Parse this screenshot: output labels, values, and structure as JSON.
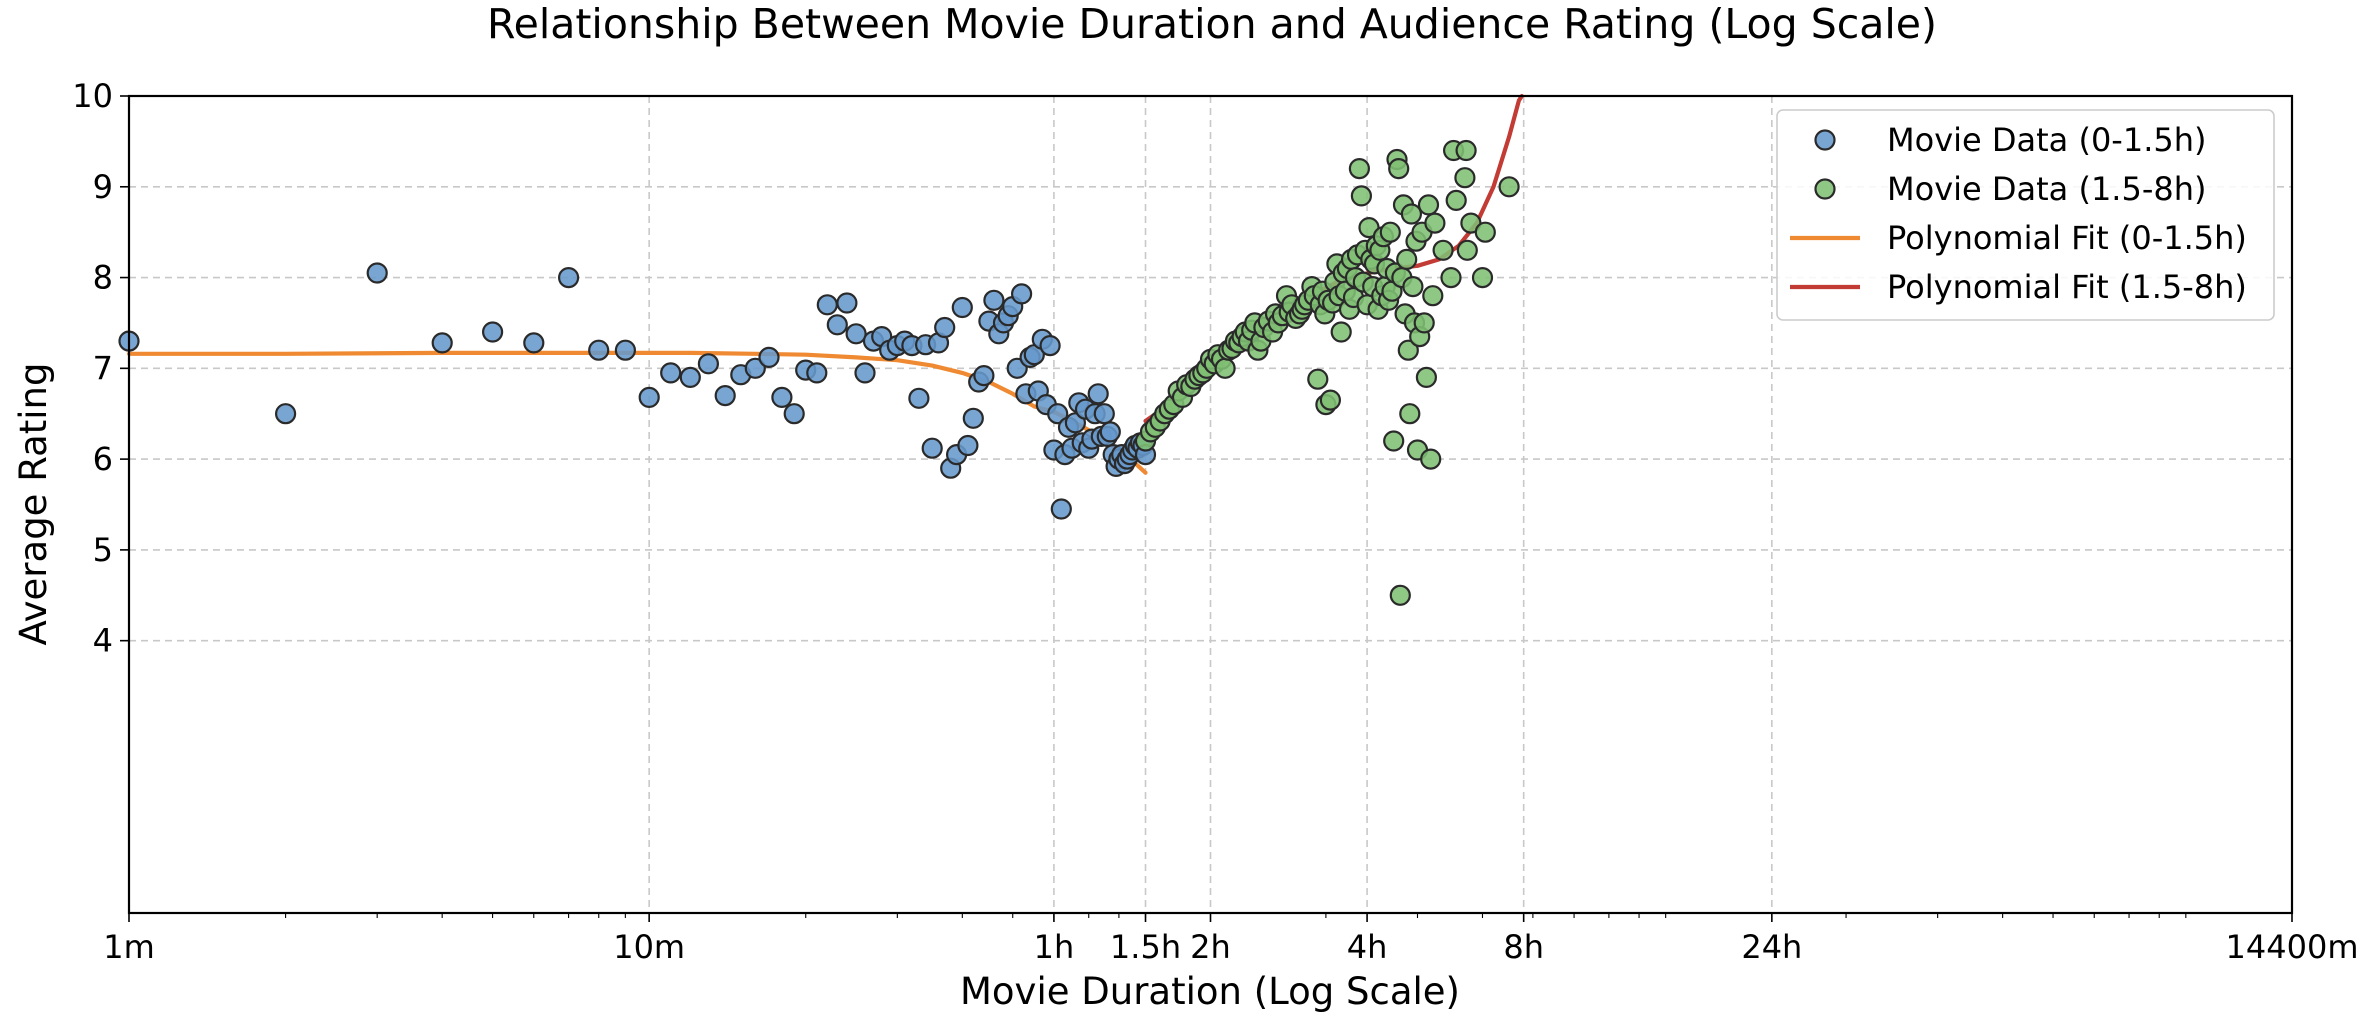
{
  "chart_data": {
    "type": "scatter",
    "title": "Relationship Between Movie Duration and Audience Rating (Log Scale)",
    "xlabel": "Movie Duration (Log Scale)",
    "ylabel": "Average Rating",
    "x_unit": "minutes",
    "x_scale": "log",
    "xlim": [
      1,
      14400
    ],
    "ylim": [
      1,
      10
    ],
    "grid": true,
    "legend_position": "top-right",
    "x_ticks": [
      {
        "value": 1,
        "label": "1m"
      },
      {
        "value": 10,
        "label": "10m"
      },
      {
        "value": 60,
        "label": "1h"
      },
      {
        "value": 90,
        "label": "1.5h"
      },
      {
        "value": 120,
        "label": "2h"
      },
      {
        "value": 240,
        "label": "4h"
      },
      {
        "value": 480,
        "label": "8h"
      },
      {
        "value": 1440,
        "label": "24h"
      },
      {
        "value": 14400,
        "label": "14400m"
      }
    ],
    "y_ticks": [
      {
        "value": 4,
        "label": "4"
      },
      {
        "value": 5,
        "label": "5"
      },
      {
        "value": 6,
        "label": "6"
      },
      {
        "value": 7,
        "label": "7"
      },
      {
        "value": 8,
        "label": "8"
      },
      {
        "value": 9,
        "label": "9"
      },
      {
        "value": 10,
        "label": "10"
      }
    ],
    "series": [
      {
        "name": "Movie Data (0-1.5h)",
        "kind": "scatter",
        "color": "#6699cc",
        "points": [
          [
            1,
            7.3
          ],
          [
            2,
            6.5
          ],
          [
            3,
            8.05
          ],
          [
            4,
            7.28
          ],
          [
            5,
            7.4
          ],
          [
            6,
            7.28
          ],
          [
            7,
            8.0
          ],
          [
            8,
            7.2
          ],
          [
            9,
            7.2
          ],
          [
            10,
            6.68
          ],
          [
            11,
            6.95
          ],
          [
            12,
            6.9
          ],
          [
            13,
            7.05
          ],
          [
            14,
            6.7
          ],
          [
            15,
            6.93
          ],
          [
            16,
            7.0
          ],
          [
            17,
            7.12
          ],
          [
            18,
            6.68
          ],
          [
            19,
            6.5
          ],
          [
            20,
            6.98
          ],
          [
            21,
            6.95
          ],
          [
            22,
            7.7
          ],
          [
            23,
            7.48
          ],
          [
            24,
            7.72
          ],
          [
            25,
            7.38
          ],
          [
            26,
            6.95
          ],
          [
            27,
            7.3
          ],
          [
            28,
            7.35
          ],
          [
            29,
            7.2
          ],
          [
            30,
            7.25
          ],
          [
            31,
            7.3
          ],
          [
            32,
            7.25
          ],
          [
            33,
            6.67
          ],
          [
            34,
            7.26
          ],
          [
            35,
            6.12
          ],
          [
            36,
            7.28
          ],
          [
            37,
            7.45
          ],
          [
            38,
            5.9
          ],
          [
            39,
            6.05
          ],
          [
            40,
            7.67
          ],
          [
            41,
            6.15
          ],
          [
            42,
            6.45
          ],
          [
            43,
            6.85
          ],
          [
            44,
            6.92
          ],
          [
            45,
            7.52
          ],
          [
            46,
            7.75
          ],
          [
            47,
            7.38
          ],
          [
            48,
            7.5
          ],
          [
            49,
            7.58
          ],
          [
            50,
            7.68
          ],
          [
            51,
            7.0
          ],
          [
            52,
            7.82
          ],
          [
            53,
            6.72
          ],
          [
            54,
            7.12
          ],
          [
            55,
            7.15
          ],
          [
            56,
            6.75
          ],
          [
            57,
            7.32
          ],
          [
            58,
            6.6
          ],
          [
            59,
            7.25
          ],
          [
            60,
            6.1
          ],
          [
            61,
            6.5
          ],
          [
            62,
            5.45
          ],
          [
            63,
            6.05
          ],
          [
            64,
            6.35
          ],
          [
            65,
            6.12
          ],
          [
            66,
            6.4
          ],
          [
            67,
            6.62
          ],
          [
            68,
            6.18
          ],
          [
            69,
            6.55
          ],
          [
            70,
            6.12
          ],
          [
            71,
            6.22
          ],
          [
            72,
            6.5
          ],
          [
            73,
            6.72
          ],
          [
            74,
            6.25
          ],
          [
            75,
            6.5
          ],
          [
            76,
            6.25
          ],
          [
            77,
            6.3
          ],
          [
            78,
            6.05
          ],
          [
            79,
            5.92
          ],
          [
            80,
            6.0
          ],
          [
            81,
            6.05
          ],
          [
            82,
            5.95
          ],
          [
            83,
            6.0
          ],
          [
            84,
            6.05
          ],
          [
            85,
            6.1
          ],
          [
            86,
            6.15
          ],
          [
            87,
            6.12
          ],
          [
            88,
            6.18
          ],
          [
            89,
            6.15
          ],
          [
            90,
            6.05
          ]
        ]
      },
      {
        "name": "Movie Data (1.5-8h)",
        "kind": "scatter",
        "color": "#80bf73",
        "points": [
          [
            90,
            6.2
          ],
          [
            92,
            6.3
          ],
          [
            94,
            6.35
          ],
          [
            96,
            6.42
          ],
          [
            98,
            6.5
          ],
          [
            100,
            6.55
          ],
          [
            102,
            6.6
          ],
          [
            104,
            6.75
          ],
          [
            106,
            6.68
          ],
          [
            108,
            6.82
          ],
          [
            110,
            6.8
          ],
          [
            112,
            6.88
          ],
          [
            114,
            6.92
          ],
          [
            116,
            6.95
          ],
          [
            118,
            7.0
          ],
          [
            120,
            7.1
          ],
          [
            122,
            7.05
          ],
          [
            124,
            7.15
          ],
          [
            126,
            7.1
          ],
          [
            128,
            7.0
          ],
          [
            130,
            7.2
          ],
          [
            132,
            7.22
          ],
          [
            134,
            7.3
          ],
          [
            136,
            7.28
          ],
          [
            138,
            7.35
          ],
          [
            140,
            7.4
          ],
          [
            142,
            7.3
          ],
          [
            144,
            7.42
          ],
          [
            146,
            7.5
          ],
          [
            148,
            7.2
          ],
          [
            150,
            7.3
          ],
          [
            152,
            7.45
          ],
          [
            155,
            7.52
          ],
          [
            158,
            7.4
          ],
          [
            160,
            7.6
          ],
          [
            162,
            7.5
          ],
          [
            165,
            7.58
          ],
          [
            168,
            7.8
          ],
          [
            170,
            7.62
          ],
          [
            172,
            7.7
          ],
          [
            175,
            7.55
          ],
          [
            178,
            7.6
          ],
          [
            180,
            7.65
          ],
          [
            182,
            7.7
          ],
          [
            185,
            7.75
          ],
          [
            188,
            7.9
          ],
          [
            190,
            7.8
          ],
          [
            193,
            6.88
          ],
          [
            195,
            7.7
          ],
          [
            197,
            7.85
          ],
          [
            199,
            7.6
          ],
          [
            200,
            6.6
          ],
          [
            202,
            7.75
          ],
          [
            204,
            6.65
          ],
          [
            206,
            7.72
          ],
          [
            208,
            7.95
          ],
          [
            210,
            8.15
          ],
          [
            212,
            7.8
          ],
          [
            214,
            7.4
          ],
          [
            216,
            8.05
          ],
          [
            218,
            7.85
          ],
          [
            220,
            8.1
          ],
          [
            222,
            7.65
          ],
          [
            224,
            8.2
          ],
          [
            226,
            7.78
          ],
          [
            228,
            8.0
          ],
          [
            230,
            8.25
          ],
          [
            232,
            9.2
          ],
          [
            234,
            8.9
          ],
          [
            236,
            7.95
          ],
          [
            238,
            8.3
          ],
          [
            240,
            7.7
          ],
          [
            242,
            8.55
          ],
          [
            244,
            8.2
          ],
          [
            246,
            7.9
          ],
          [
            248,
            8.15
          ],
          [
            250,
            8.35
          ],
          [
            252,
            7.65
          ],
          [
            254,
            8.3
          ],
          [
            256,
            7.8
          ],
          [
            258,
            8.45
          ],
          [
            260,
            7.9
          ],
          [
            262,
            8.1
          ],
          [
            264,
            7.75
          ],
          [
            266,
            8.5
          ],
          [
            268,
            7.85
          ],
          [
            270,
            6.2
          ],
          [
            272,
            8.05
          ],
          [
            274,
            9.3
          ],
          [
            276,
            9.2
          ],
          [
            278,
            4.5
          ],
          [
            280,
            8.0
          ],
          [
            282,
            8.8
          ],
          [
            284,
            7.6
          ],
          [
            286,
            8.2
          ],
          [
            288,
            7.2
          ],
          [
            290,
            6.5
          ],
          [
            292,
            8.7
          ],
          [
            294,
            7.9
          ],
          [
            296,
            7.5
          ],
          [
            298,
            8.4
          ],
          [
            300,
            6.1
          ],
          [
            303,
            7.35
          ],
          [
            306,
            8.5
          ],
          [
            309,
            7.5
          ],
          [
            312,
            6.9
          ],
          [
            315,
            8.8
          ],
          [
            318,
            6.0
          ],
          [
            321,
            7.8
          ],
          [
            324,
            8.6
          ],
          [
            336,
            8.3
          ],
          [
            348,
            8.0
          ],
          [
            352,
            9.4
          ],
          [
            356,
            8.85
          ],
          [
            370,
            9.1
          ],
          [
            372,
            9.4
          ],
          [
            374,
            8.3
          ],
          [
            380,
            8.6
          ],
          [
            400,
            8.0
          ],
          [
            405,
            8.5
          ],
          [
            450,
            9.0
          ]
        ]
      },
      {
        "name": "Polynomial Fit (0-1.5h)",
        "kind": "line",
        "color": "#ef8a32",
        "points": [
          [
            1,
            7.16
          ],
          [
            2,
            7.16
          ],
          [
            4,
            7.17
          ],
          [
            8,
            7.17
          ],
          [
            12,
            7.17
          ],
          [
            16,
            7.16
          ],
          [
            20,
            7.15
          ],
          [
            25,
            7.12
          ],
          [
            30,
            7.09
          ],
          [
            35,
            7.03
          ],
          [
            40,
            6.95
          ],
          [
            45,
            6.85
          ],
          [
            50,
            6.72
          ],
          [
            55,
            6.58
          ],
          [
            60,
            6.52
          ],
          [
            65,
            6.42
          ],
          [
            70,
            6.32
          ],
          [
            75,
            6.2
          ],
          [
            80,
            6.1
          ],
          [
            85,
            5.98
          ],
          [
            90,
            5.85
          ]
        ]
      },
      {
        "name": "Polynomial Fit (1.5-8h)",
        "kind": "line",
        "color": "#c23b34",
        "points": [
          [
            90,
            6.42
          ],
          [
            100,
            6.6
          ],
          [
            110,
            6.78
          ],
          [
            120,
            6.95
          ],
          [
            135,
            7.2
          ],
          [
            150,
            7.42
          ],
          [
            170,
            7.65
          ],
          [
            190,
            7.82
          ],
          [
            210,
            7.95
          ],
          [
            230,
            8.02
          ],
          [
            250,
            8.07
          ],
          [
            270,
            8.1
          ],
          [
            300,
            8.13
          ],
          [
            330,
            8.2
          ],
          [
            360,
            8.35
          ],
          [
            390,
            8.6
          ],
          [
            420,
            9.0
          ],
          [
            450,
            9.55
          ],
          [
            470,
            9.95
          ],
          [
            476,
            10.0
          ]
        ]
      }
    ]
  }
}
